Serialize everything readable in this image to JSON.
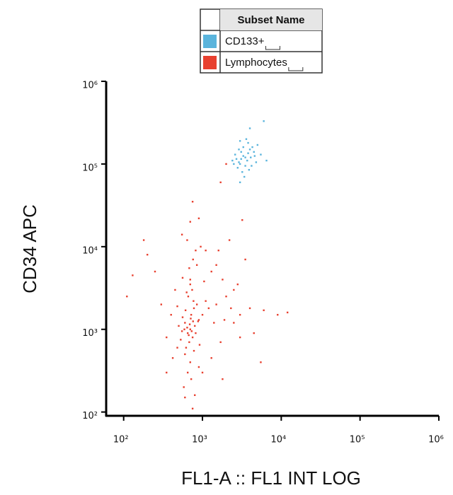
{
  "chart_data": {
    "type": "scatter",
    "x_label": "FL1-A :: FL1 INT LOG",
    "y_label": "CD34 APC",
    "legend_title": "Subset Name",
    "xscale": "log",
    "yscale": "log",
    "xlim": [
      60,
      1000000
    ],
    "ylim": [
      90,
      1000000
    ],
    "xticks": [
      {
        "value": 100,
        "label": "10²"
      },
      {
        "value": 1000,
        "label": "10³"
      },
      {
        "value": 10000,
        "label": "10⁴"
      },
      {
        "value": 100000,
        "label": "10⁵"
      },
      {
        "value": 1000000,
        "label": "10⁶"
      }
    ],
    "yticks": [
      {
        "value": 100,
        "label": "10²"
      },
      {
        "value": 1000,
        "label": "10³"
      },
      {
        "value": 10000,
        "label": "10⁴"
      },
      {
        "value": 100000,
        "label": "10⁵"
      },
      {
        "value": 1000000,
        "label": "10⁶"
      }
    ],
    "series": [
      {
        "name": "CD133+",
        "color": "#5ab4dc",
        "x": [
          3000,
          3500,
          2800,
          4000,
          3200,
          3700,
          2600,
          4500,
          3300,
          2900,
          4200,
          3800,
          3100,
          2700,
          4600,
          5000,
          3400,
          3900,
          2500,
          3600,
          3000,
          4300,
          5500,
          6000,
          4000,
          2400,
          3300,
          3500,
          3800,
          3100,
          4800,
          6500,
          3000,
          2900,
          4100
        ],
        "values": [
          100000,
          120000,
          90000,
          150000,
          80000,
          110000,
          130000,
          140000,
          160000,
          105000,
          95000,
          180000,
          140000,
          115000,
          125000,
          170000,
          70000,
          85000,
          100000,
          200000,
          190000,
          160000,
          130000,
          330000,
          270000,
          110000,
          125000,
          95000,
          135000,
          115000,
          105000,
          110000,
          60000,
          150000,
          120000
        ]
      },
      {
        "name": "Lymphocytes",
        "color": "#e8402f",
        "x": [
          700,
          650,
          800,
          600,
          750,
          550,
          900,
          680,
          720,
          620,
          850,
          500,
          780,
          660,
          740,
          700,
          680,
          760,
          820,
          640,
          700,
          750,
          600,
          700,
          650,
          720,
          580,
          900,
          1000,
          1200,
          1500,
          2000,
          2500,
          1800,
          1300,
          1100,
          1400,
          3000,
          4000,
          6000,
          9000,
          12000,
          3500,
          1600,
          2200,
          450,
          400,
          350,
          480,
          300,
          250,
          200,
          130,
          110,
          180,
          550,
          900,
          1100,
          1500,
          2800,
          4500,
          1700,
          1300,
          1000,
          800,
          600,
          750,
          1800,
          5500,
          3000,
          2500,
          880,
          920,
          560,
          610,
          530,
          780,
          690,
          710,
          670,
          730,
          640,
          760,
          590,
          820,
          700,
          630,
          770,
          850,
          560,
          950,
          2000,
          1700,
          3200,
          2300,
          1900,
          350,
          420,
          480,
          1050
        ],
        "values": [
          1000,
          900,
          1100,
          1200,
          800,
          950,
          1300,
          700,
          1500,
          600,
          2000,
          1100,
          1800,
          2500,
          3000,
          4000,
          5500,
          7000,
          9000,
          12000,
          20000,
          35000,
          500,
          400,
          300,
          250,
          200,
          350,
          1500,
          1800,
          2000,
          2500,
          3000,
          4000,
          5000,
          2200,
          1200,
          1500,
          1800,
          1700,
          1500,
          1600,
          7000,
          9000,
          12000,
          3000,
          1500,
          800,
          600,
          2000,
          5000,
          8000,
          4500,
          2500,
          12000,
          14000,
          22000,
          9000,
          6000,
          3500,
          900,
          700,
          450,
          300,
          160,
          150,
          110,
          250,
          400,
          800,
          1200,
          1250,
          650,
          1400,
          1700,
          750,
          550,
          1150,
          1350,
          850,
          950,
          1050,
          1250,
          1000,
          900,
          3500,
          2800,
          2200,
          6000,
          4200,
          10000,
          100000,
          60000,
          21000,
          1800,
          1300,
          300,
          450,
          1900,
          3800
        ]
      }
    ]
  }
}
